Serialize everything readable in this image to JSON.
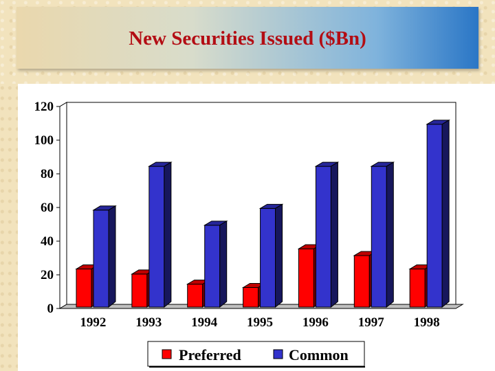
{
  "chart_data": {
    "type": "bar",
    "title": "New Securities Issued ($Bn)",
    "categories": [
      "1992",
      "1993",
      "1994",
      "1995",
      "1996",
      "1997",
      "1998"
    ],
    "series": [
      {
        "name": "Preferred",
        "values": [
          21,
          18,
          12,
          10,
          33,
          29,
          21
        ],
        "color": "#ff0000"
      },
      {
        "name": "Common",
        "values": [
          56,
          82,
          47,
          57,
          82,
          82,
          107
        ],
        "color": "#3333cc"
      }
    ],
    "ylim": [
      0,
      120
    ],
    "yticks": [
      "0",
      "20",
      "40",
      "60",
      "80",
      "100",
      "120"
    ],
    "grid": true,
    "legend_position": "bottom-center",
    "bar_style": "3d"
  }
}
